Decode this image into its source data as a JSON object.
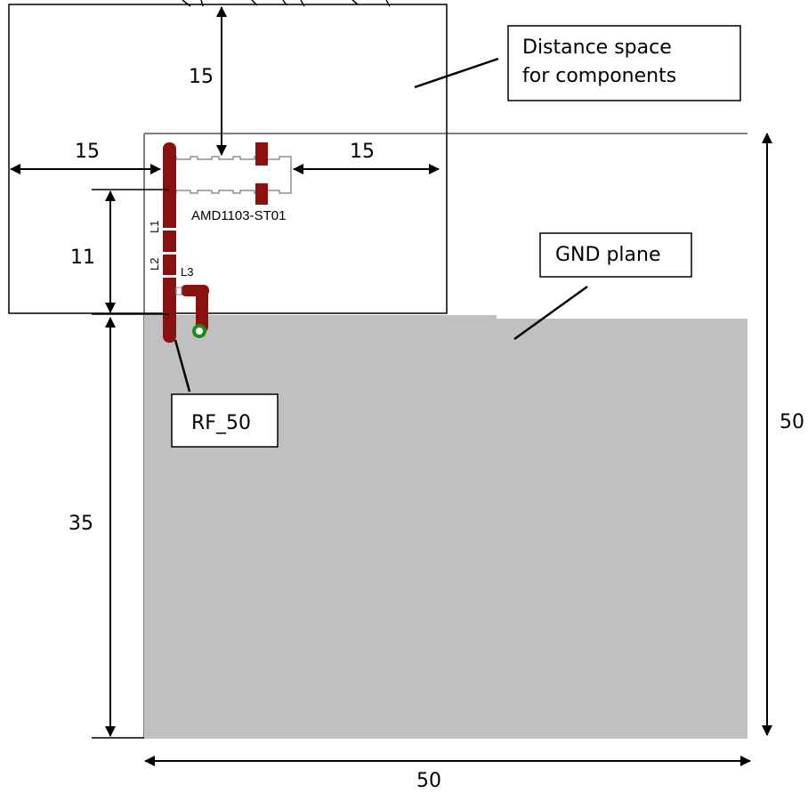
{
  "dimensions": {
    "clearance_top": "15",
    "clearance_left": "15",
    "clearance_right": "15",
    "antenna_height": "11",
    "gnd_height": "35",
    "board_height": "50",
    "board_width": "50"
  },
  "callouts": {
    "distance_space": [
      "Distance space",
      "for components"
    ],
    "gnd_plane": "GND plane",
    "rf_50": "RF_50"
  },
  "components": {
    "antenna_part": "AMD1103-ST01",
    "l1": "L1",
    "l2": "L2",
    "l3": "L3"
  },
  "colors": {
    "gnd_plane": "#c0c0c0",
    "trace": "#8b1010",
    "via_ring": "#1e8a1e",
    "board_outline": "#808080"
  }
}
